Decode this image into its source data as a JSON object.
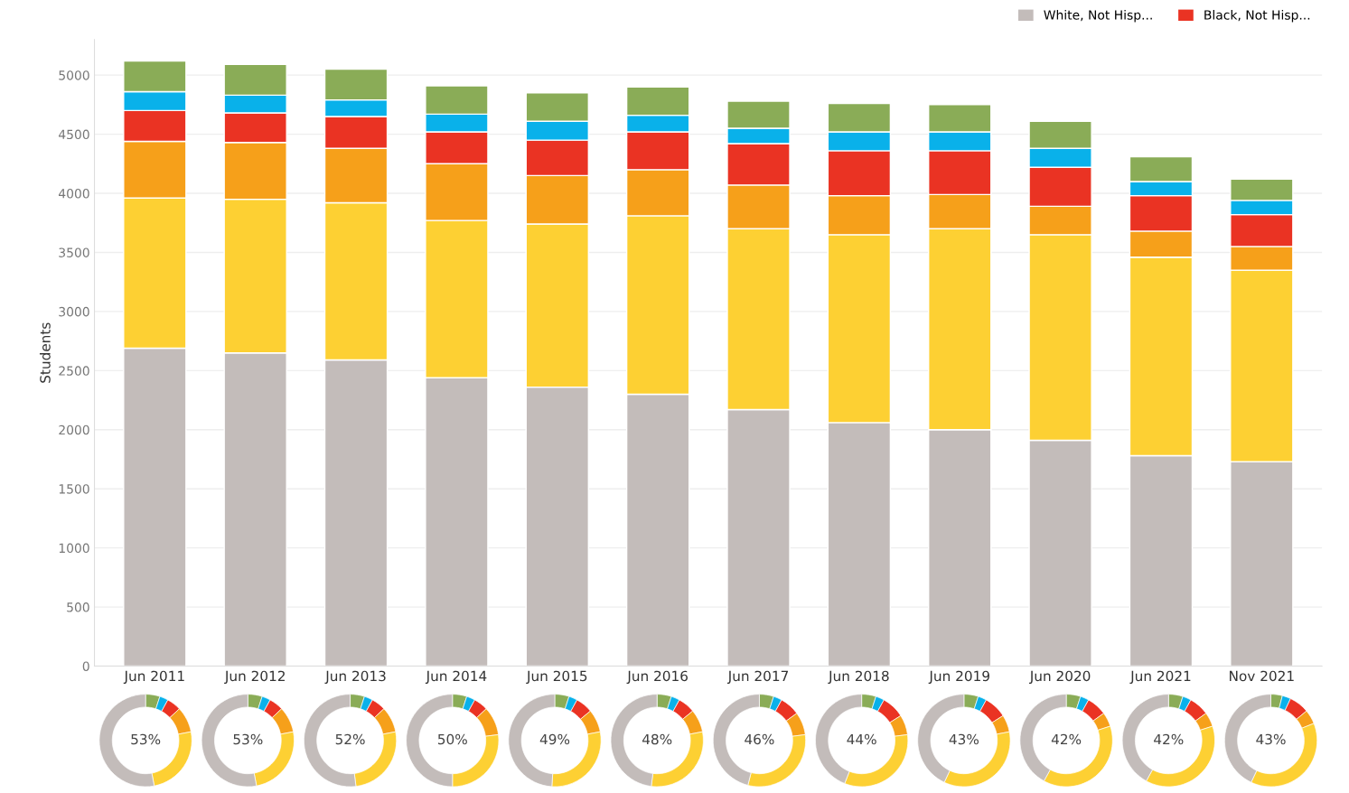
{
  "chart_data": [
    {
      "type": "bar",
      "stacked": true,
      "ylabel": "Students",
      "categories": [
        "Jun 2011",
        "Jun 2012",
        "Jun 2013",
        "Jun 2014",
        "Jun 2015",
        "Jun 2016",
        "Jun 2017",
        "Jun 2018",
        "Jun 2019",
        "Jun 2020",
        "Jun 2021",
        "Nov 2021"
      ],
      "series": [
        {
          "name": "White, Not Hisp...",
          "color": "#c3bcba",
          "values": [
            2690,
            2650,
            2590,
            2440,
            2360,
            2300,
            2170,
            2060,
            2000,
            1910,
            1780,
            1730
          ]
        },
        {
          "color": "#fdd033",
          "values": [
            1270,
            1300,
            1330,
            1330,
            1380,
            1510,
            1530,
            1590,
            1700,
            1740,
            1680,
            1620
          ]
        },
        {
          "color": "#f6a01a",
          "values": [
            480,
            480,
            460,
            480,
            410,
            390,
            370,
            330,
            290,
            240,
            220,
            200
          ]
        },
        {
          "name": "Black, Not Hisp...",
          "color": "#ea3323",
          "values": [
            260,
            250,
            270,
            270,
            300,
            320,
            350,
            380,
            370,
            330,
            300,
            270
          ]
        },
        {
          "color": "#09b1ea",
          "values": [
            160,
            150,
            140,
            150,
            160,
            140,
            130,
            160,
            160,
            160,
            120,
            120
          ]
        },
        {
          "color": "#8aac57",
          "values": [
            260,
            260,
            260,
            240,
            240,
            240,
            230,
            240,
            230,
            230,
            210,
            180
          ]
        }
      ],
      "ylim": [
        0,
        5300
      ],
      "yticks": [
        0,
        500,
        1000,
        1500,
        2000,
        2500,
        3000,
        3500,
        4000,
        4500,
        5000
      ],
      "grid": "y",
      "legend": "top right"
    },
    {
      "type": "donut",
      "categories": [
        null,
        null,
        null,
        null,
        null,
        null
      ],
      "colors": [
        "#8aac57",
        "#09b1ea",
        "#ea3323",
        "#f6a01a",
        "#fdd033",
        "#c3bcba"
      ],
      "values": [
        5,
        3,
        5,
        9,
        25,
        53
      ],
      "annotations": [
        "53%"
      ]
    },
    {
      "type": "donut",
      "categories": [
        null,
        null,
        null,
        null,
        null,
        null
      ],
      "colors": [
        "#8aac57",
        "#09b1ea",
        "#ea3323",
        "#f6a01a",
        "#fdd033",
        "#c3bcba"
      ],
      "values": [
        5,
        3,
        5,
        9,
        25,
        53
      ],
      "annotations": [
        "53%"
      ]
    },
    {
      "type": "donut",
      "categories": [
        null,
        null,
        null,
        null,
        null,
        null
      ],
      "colors": [
        "#8aac57",
        "#09b1ea",
        "#ea3323",
        "#f6a01a",
        "#fdd033",
        "#c3bcba"
      ],
      "values": [
        5,
        3,
        5,
        9,
        26,
        52
      ],
      "annotations": [
        "52%"
      ]
    },
    {
      "type": "donut",
      "categories": [
        null,
        null,
        null,
        null,
        null,
        null
      ],
      "colors": [
        "#8aac57",
        "#09b1ea",
        "#ea3323",
        "#f6a01a",
        "#fdd033",
        "#c3bcba"
      ],
      "values": [
        5,
        3,
        5,
        10,
        27,
        50
      ],
      "annotations": [
        "50%"
      ]
    },
    {
      "type": "donut",
      "categories": [
        null,
        null,
        null,
        null,
        null,
        null
      ],
      "colors": [
        "#8aac57",
        "#09b1ea",
        "#ea3323",
        "#f6a01a",
        "#fdd033",
        "#c3bcba"
      ],
      "values": [
        5,
        3,
        6,
        8,
        29,
        49
      ],
      "annotations": [
        "49%"
      ]
    },
    {
      "type": "donut",
      "categories": [
        null,
        null,
        null,
        null,
        null,
        null
      ],
      "colors": [
        "#8aac57",
        "#09b1ea",
        "#ea3323",
        "#f6a01a",
        "#fdd033",
        "#c3bcba"
      ],
      "values": [
        5,
        3,
        6,
        8,
        30,
        48
      ],
      "annotations": [
        "48%"
      ]
    },
    {
      "type": "donut",
      "categories": [
        null,
        null,
        null,
        null,
        null,
        null
      ],
      "colors": [
        "#8aac57",
        "#09b1ea",
        "#ea3323",
        "#f6a01a",
        "#fdd033",
        "#c3bcba"
      ],
      "values": [
        5,
        3,
        7,
        8,
        31,
        46
      ],
      "annotations": [
        "46%"
      ]
    },
    {
      "type": "donut",
      "categories": [
        null,
        null,
        null,
        null,
        null,
        null
      ],
      "colors": [
        "#8aac57",
        "#09b1ea",
        "#ea3323",
        "#f6a01a",
        "#fdd033",
        "#c3bcba"
      ],
      "values": [
        5,
        3,
        8,
        7,
        33,
        44
      ],
      "annotations": [
        "44%"
      ]
    },
    {
      "type": "donut",
      "categories": [
        null,
        null,
        null,
        null,
        null,
        null
      ],
      "colors": [
        "#8aac57",
        "#09b1ea",
        "#ea3323",
        "#f6a01a",
        "#fdd033",
        "#c3bcba"
      ],
      "values": [
        5,
        3,
        8,
        6,
        35,
        43
      ],
      "annotations": [
        "43%"
      ]
    },
    {
      "type": "donut",
      "categories": [
        null,
        null,
        null,
        null,
        null,
        null
      ],
      "colors": [
        "#8aac57",
        "#09b1ea",
        "#ea3323",
        "#f6a01a",
        "#fdd033",
        "#c3bcba"
      ],
      "values": [
        5,
        3,
        7,
        5,
        38,
        42
      ],
      "annotations": [
        "42%"
      ]
    },
    {
      "type": "donut",
      "categories": [
        null,
        null,
        null,
        null,
        null,
        null
      ],
      "colors": [
        "#8aac57",
        "#09b1ea",
        "#ea3323",
        "#f6a01a",
        "#fdd033",
        "#c3bcba"
      ],
      "values": [
        5,
        3,
        7,
        5,
        38,
        42
      ],
      "annotations": [
        "42%"
      ]
    },
    {
      "type": "donut",
      "categories": [
        null,
        null,
        null,
        null,
        null,
        null
      ],
      "colors": [
        "#8aac57",
        "#09b1ea",
        "#ea3323",
        "#f6a01a",
        "#fdd033",
        "#c3bcba"
      ],
      "values": [
        4,
        3,
        7,
        5,
        38,
        43
      ],
      "annotations": [
        "43%"
      ]
    }
  ]
}
